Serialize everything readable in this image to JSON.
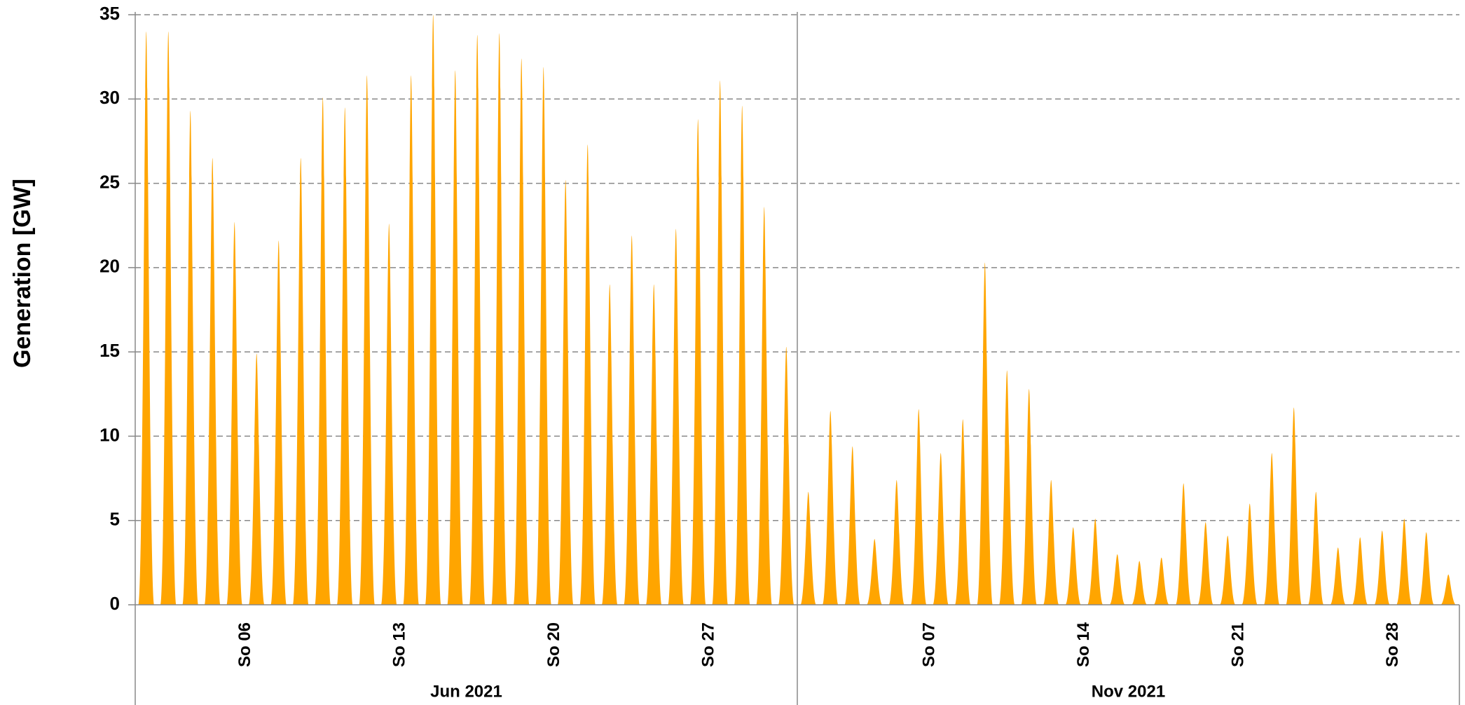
{
  "chart_data": {
    "type": "area",
    "y_label": "Generation   [GW]",
    "color": "#ffa500",
    "ylim": [
      0,
      35
    ],
    "yticks": [
      0,
      5,
      10,
      15,
      20,
      25,
      30,
      35
    ],
    "grid": true,
    "groups": [
      {
        "label": "Jun 2021",
        "categories": [
          null,
          null,
          null,
          null,
          null,
          "So 06",
          null,
          null,
          null,
          null,
          null,
          null,
          "So 13",
          null,
          null,
          null,
          null,
          null,
          null,
          "So 20",
          null,
          null,
          null,
          null,
          null,
          null,
          "So 27",
          null,
          null,
          null
        ],
        "values": [
          34,
          34,
          29.3,
          26.5,
          22.7,
          14.9,
          21.6,
          26.5,
          30.1,
          29.5,
          31.4,
          22.6,
          31.4,
          35,
          31.7,
          33.8,
          33.9,
          32.4,
          31.9,
          25.2,
          27.3,
          19,
          21.9,
          19,
          22.3,
          28.8,
          31.1,
          29.6,
          23.6,
          15.3
        ]
      },
      {
        "label": "Nov 2021",
        "categories": [
          null,
          null,
          null,
          null,
          null,
          null,
          "So 07",
          null,
          null,
          null,
          null,
          null,
          null,
          "So 14",
          null,
          null,
          null,
          null,
          null,
          null,
          "So 21",
          null,
          null,
          null,
          null,
          null,
          null,
          "So 28",
          null,
          null
        ],
        "values": [
          6.7,
          11.5,
          9.4,
          3.9,
          7.4,
          11.6,
          9,
          11,
          20.3,
          13.9,
          12.8,
          7.4,
          4.6,
          5.1,
          3,
          2.6,
          2.8,
          7.2,
          4.9,
          4.1,
          6,
          9,
          11.7,
          6.7,
          3.4,
          4,
          4.4,
          5.1,
          4.3,
          1.8
        ]
      }
    ]
  }
}
